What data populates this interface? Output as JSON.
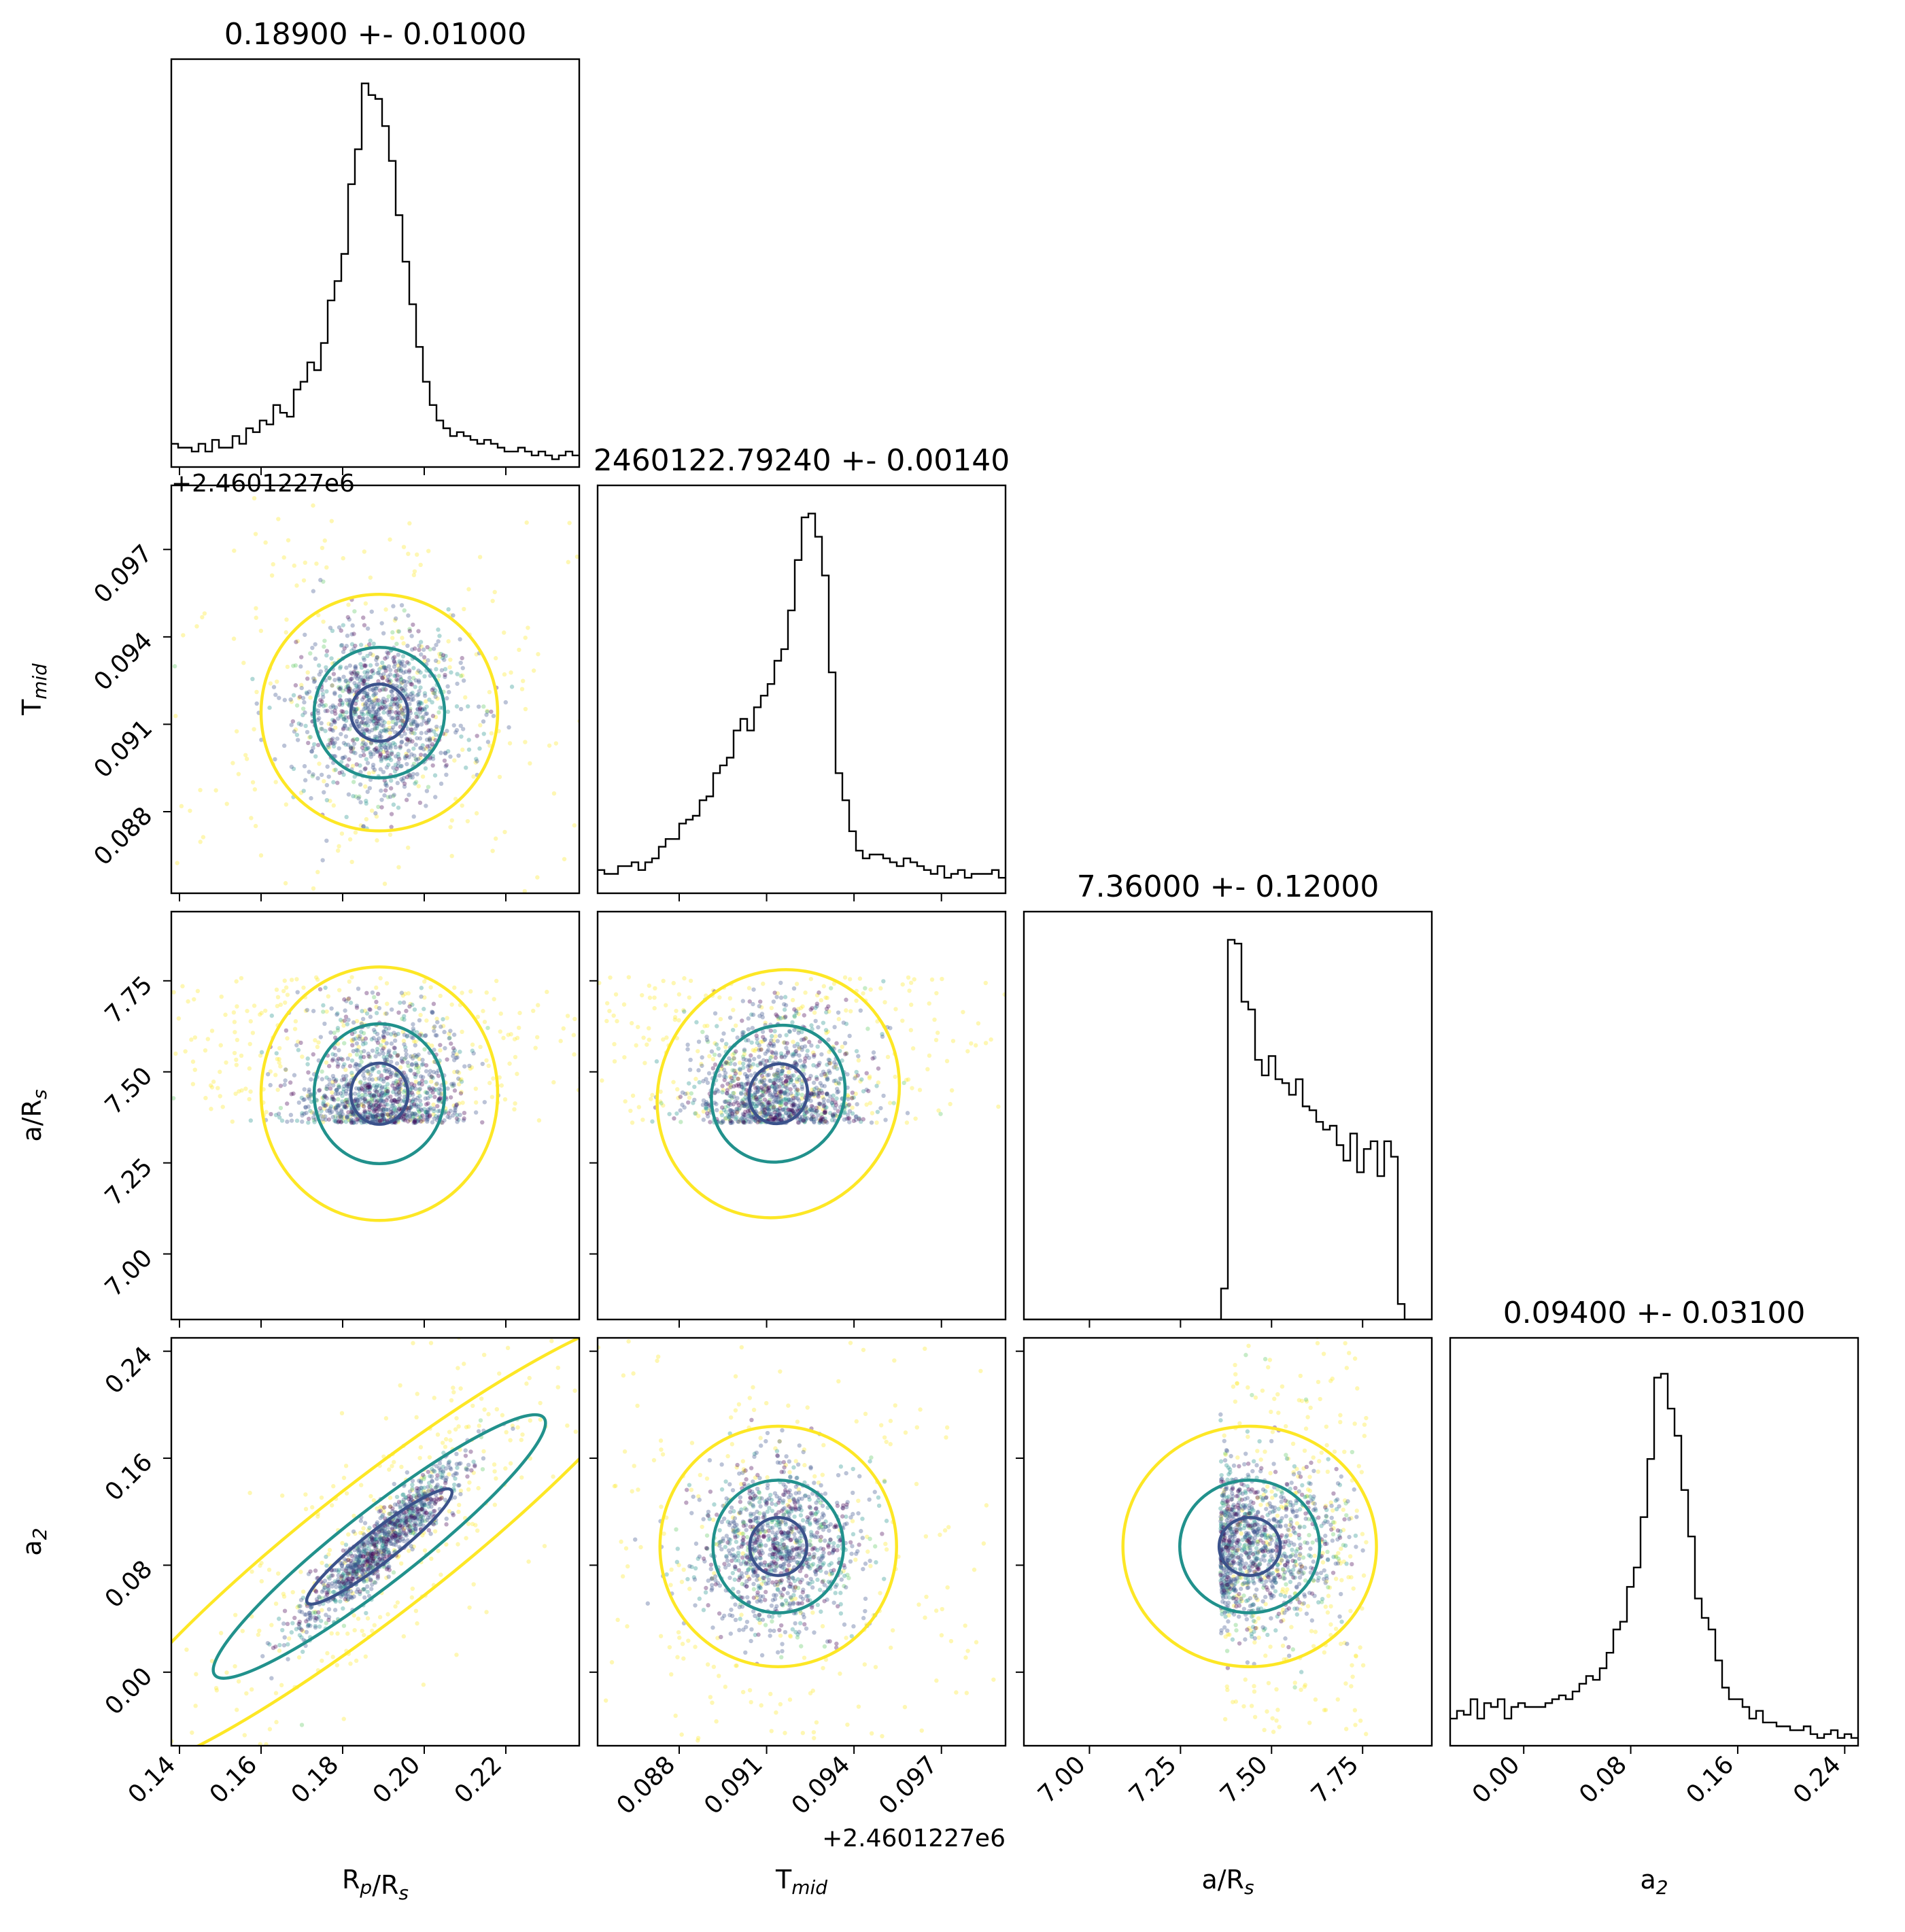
{
  "chart_data": {
    "type": "corner",
    "parameters": [
      {
        "key": "rprs",
        "label_main": "R",
        "label_sub1": "p",
        "label_mid": "/R",
        "label_sub2": "s",
        "title": "0.18900 +- 0.01000",
        "mean": 0.189,
        "sigma": 0.01,
        "range": [
          0.138,
          0.238
        ],
        "ticks": [
          "0.14",
          "0.16",
          "0.18",
          "0.20",
          "0.22"
        ],
        "offset": ""
      },
      {
        "key": "tmid",
        "label_main": "T",
        "label_sub1": "mid",
        "label_mid": "",
        "label_sub2": "",
        "title": "2460122.79240 +- 0.00140",
        "mean": 0.0914,
        "sigma": 0.0014,
        "range": [
          0.0852,
          0.0992
        ],
        "ticks": [
          "0.088",
          "0.091",
          "0.094",
          "0.097"
        ],
        "offset": "+2.4601227e6"
      },
      {
        "key": "ars",
        "label_main": "a/R",
        "label_sub1": "s",
        "label_mid": "",
        "label_sub2": "",
        "title": "7.36000 +- 0.12000",
        "mean": 7.36,
        "sigma": 0.12,
        "range": [
          6.82,
          7.94
        ],
        "ticks": [
          "7.00",
          "7.25",
          "7.50",
          "7.75"
        ],
        "offset": ""
      },
      {
        "key": "a2",
        "label_main": "a",
        "label_sub1": "2",
        "label_mid": "",
        "label_sub2": "",
        "title": "0.09400 +- 0.03100",
        "mean": 0.094,
        "sigma": 0.031,
        "range": [
          -0.055,
          0.25
        ],
        "ticks": [
          "0.00",
          "0.08",
          "0.16",
          "0.24"
        ],
        "offset": ""
      }
    ],
    "histograms": {
      "rprs": [
        0.06,
        0.05,
        0.05,
        0.04,
        0.06,
        0.04,
        0.07,
        0.05,
        0.05,
        0.08,
        0.06,
        0.1,
        0.09,
        0.12,
        0.11,
        0.16,
        0.14,
        0.13,
        0.2,
        0.22,
        0.27,
        0.25,
        0.32,
        0.43,
        0.48,
        0.55,
        0.73,
        0.82,
        0.99,
        0.96,
        0.95,
        0.88,
        0.79,
        0.65,
        0.53,
        0.42,
        0.31,
        0.22,
        0.16,
        0.12,
        0.1,
        0.08,
        0.09,
        0.08,
        0.07,
        0.06,
        0.07,
        0.06,
        0.05,
        0.04,
        0.04,
        0.05,
        0.04,
        0.03,
        0.04,
        0.03,
        0.02,
        0.03,
        0.04,
        0.03
      ],
      "tmid": [
        0.06,
        0.05,
        0.05,
        0.07,
        0.07,
        0.08,
        0.06,
        0.08,
        0.09,
        0.12,
        0.14,
        0.14,
        0.18,
        0.19,
        0.2,
        0.24,
        0.25,
        0.31,
        0.33,
        0.35,
        0.42,
        0.45,
        0.42,
        0.48,
        0.51,
        0.54,
        0.6,
        0.63,
        0.73,
        0.86,
        0.97,
        0.98,
        0.92,
        0.82,
        0.57,
        0.31,
        0.24,
        0.16,
        0.11,
        0.09,
        0.1,
        0.1,
        0.09,
        0.08,
        0.07,
        0.09,
        0.08,
        0.07,
        0.06,
        0.05,
        0.07,
        0.04,
        0.05,
        0.06,
        0.04,
        0.05,
        0.05,
        0.05,
        0.06,
        0.04
      ],
      "ars": [
        0,
        0,
        0,
        0,
        0,
        0,
        0,
        0,
        0,
        0,
        0,
        0,
        0,
        0,
        0,
        0,
        0,
        0,
        0,
        0,
        0,
        0,
        0,
        0,
        0,
        0,
        0,
        0,
        0,
        0.08,
        0.98,
        0.97,
        0.82,
        0.8,
        0.67,
        0.63,
        0.68,
        0.62,
        0.61,
        0.58,
        0.62,
        0.55,
        0.54,
        0.51,
        0.49,
        0.5,
        0.45,
        0.41,
        0.48,
        0.38,
        0.44,
        0.46,
        0.37,
        0.46,
        0.42,
        0.04,
        0,
        0,
        0,
        0
      ],
      "a2": [
        0.07,
        0.09,
        0.08,
        0.12,
        0.07,
        0.11,
        0.1,
        0.12,
        0.07,
        0.1,
        0.11,
        0.1,
        0.1,
        0.1,
        0.11,
        0.12,
        0.13,
        0.12,
        0.14,
        0.16,
        0.18,
        0.17,
        0.2,
        0.24,
        0.3,
        0.32,
        0.41,
        0.46,
        0.59,
        0.74,
        0.95,
        0.96,
        0.87,
        0.8,
        0.66,
        0.54,
        0.38,
        0.33,
        0.3,
        0.22,
        0.15,
        0.12,
        0.12,
        0.1,
        0.07,
        0.09,
        0.06,
        0.06,
        0.05,
        0.05,
        0.04,
        0.04,
        0.05,
        0.03,
        0.02,
        0.03,
        0.04,
        0.02,
        0.03,
        0.02
      ]
    },
    "contour_levels": [
      "inner",
      "1-sigma",
      "2-sigma"
    ],
    "colormap": [
      "#440154",
      "#3b528b",
      "#21918c",
      "#5ec962",
      "#fde725"
    ],
    "contour_colors": [
      "#3b528b",
      "#21918c",
      "#fde725"
    ]
  }
}
